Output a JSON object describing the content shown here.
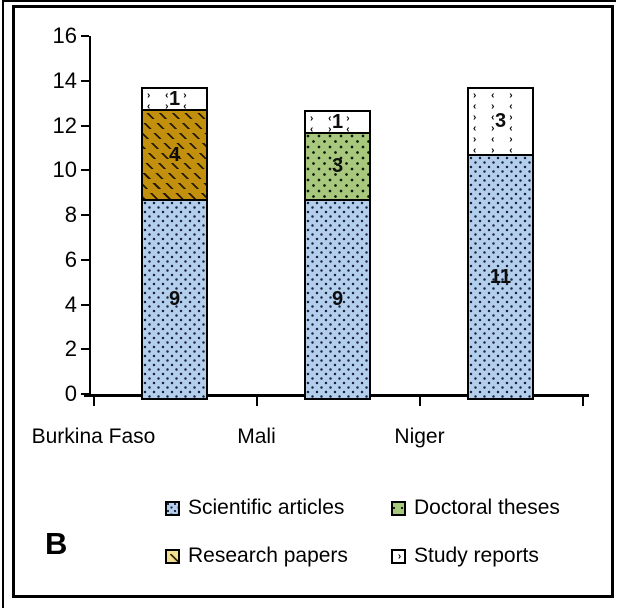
{
  "figure": {
    "panel_label": "B"
  },
  "chart_data": {
    "type": "bar",
    "stacked": true,
    "title": "",
    "xlabel": "",
    "ylabel": "",
    "categories": [
      "Burkina Faso",
      "Mali",
      "Niger"
    ],
    "series": [
      {
        "name": "Scientific articles",
        "values": [
          9,
          9,
          11
        ],
        "color": "#B3CFEC",
        "pattern": "blue-dots",
        "legend_swatch": "blue"
      },
      {
        "name": "Doctoral theses",
        "values": [
          0,
          3,
          0
        ],
        "color": "#A8C87D",
        "pattern": "green-dots",
        "legend_swatch": "green"
      },
      {
        "name": "Research papers",
        "values": [
          4,
          0,
          0
        ],
        "color": "#C2900C",
        "pattern": "gold-dashes",
        "legend_swatch": "yellow"
      },
      {
        "name": "Study reports",
        "values": [
          1,
          1,
          3
        ],
        "color": "#FFFFFF",
        "pattern": "chevrons",
        "legend_swatch": "white"
      }
    ],
    "stack_totals": [
      14,
      13,
      14
    ],
    "ylim": [
      0,
      16
    ],
    "yticks": [
      0,
      2,
      4,
      6,
      8,
      10,
      12,
      14,
      16
    ],
    "grid": false,
    "legend_position": "bottom",
    "segment_labels_shown": true
  }
}
